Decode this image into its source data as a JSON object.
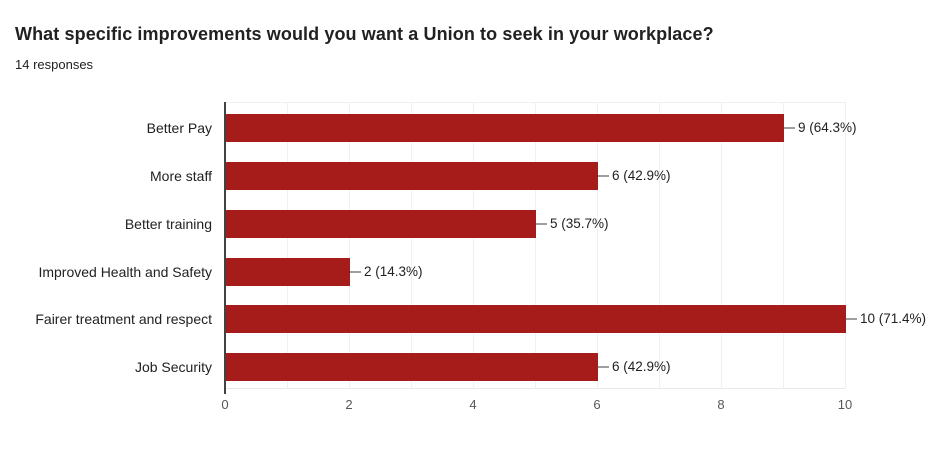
{
  "header": {
    "title": "What specific improvements would you want a Union to seek in your workplace?",
    "subtitle": "14 responses"
  },
  "chart_data": {
    "type": "bar",
    "orientation": "horizontal",
    "title": "What specific improvements would you want a Union to seek in your workplace?",
    "subtitle": "14 responses",
    "categories": [
      "Better Pay",
      "More staff",
      "Better training",
      "Improved Health and Safety",
      "Fairer treatment and respect",
      "Job Security"
    ],
    "values": [
      9,
      6,
      5,
      2,
      10,
      6
    ],
    "annotations": [
      "9 (64.3%)",
      "6 (42.9%)",
      "5 (35.7%)",
      "2 (14.3%)",
      "10 (71.4%)",
      "6 (42.9%)"
    ],
    "percentages": [
      64.3,
      42.9,
      35.7,
      14.3,
      71.4,
      42.9
    ],
    "total_responses": 14,
    "x_ticks": [
      0,
      2,
      4,
      6,
      8,
      10
    ],
    "xlim": [
      0,
      10
    ],
    "xlabel": "",
    "ylabel": "",
    "grid": true,
    "legend": "none",
    "colors": {
      "bar": "#A61C1A",
      "axis_line": "#424242",
      "gridline": "#F0F0F0",
      "tick_label": "#575757",
      "annotation_text": "#212121",
      "category_label": "#212121",
      "connector": "#9E9E9E",
      "background": "#FFFFFF"
    }
  }
}
